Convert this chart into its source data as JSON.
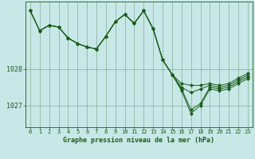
{
  "xlabel": "Graphe pression niveau de la mer (hPa)",
  "bg_color": "#c8e8e8",
  "plot_bg_color": "#c8e8e8",
  "grid_color": "#88aa99",
  "line_color": "#1a5c1a",
  "marker_color": "#1a5c1a",
  "ylim": [
    1026.4,
    1029.85
  ],
  "yticks": [
    1027,
    1028
  ],
  "xlim": [
    -0.5,
    23.5
  ],
  "xticks": [
    0,
    1,
    2,
    3,
    4,
    5,
    6,
    7,
    8,
    9,
    10,
    11,
    12,
    13,
    14,
    15,
    16,
    17,
    18,
    19,
    20,
    21,
    22,
    23
  ],
  "series": [
    [
      1029.6,
      1029.05,
      1029.2,
      1029.15,
      1028.85,
      1028.7,
      1028.6,
      1028.55,
      1028.9,
      1029.3,
      1029.5,
      1029.25,
      1029.6,
      1029.1,
      1028.25,
      1027.85,
      1027.6,
      1027.55,
      1027.55,
      1027.6,
      1027.55,
      1027.6,
      1027.75,
      1027.88
    ],
    [
      1029.6,
      1029.05,
      1029.2,
      1029.15,
      1028.85,
      1028.7,
      1028.6,
      1028.55,
      1028.9,
      1029.3,
      1029.5,
      1029.25,
      1029.6,
      1029.1,
      1028.25,
      1027.85,
      1027.5,
      1027.35,
      1027.45,
      1027.55,
      1027.5,
      1027.55,
      1027.7,
      1027.83
    ],
    [
      1029.6,
      1029.05,
      1029.2,
      1029.15,
      1028.85,
      1028.7,
      1028.6,
      1028.55,
      1028.9,
      1029.3,
      1029.5,
      1029.25,
      1029.6,
      1029.1,
      1028.25,
      1027.85,
      1027.45,
      1026.88,
      1027.05,
      1027.5,
      1027.45,
      1027.5,
      1027.65,
      1027.78
    ],
    [
      1029.6,
      1029.05,
      1029.2,
      1029.15,
      1028.85,
      1028.7,
      1028.6,
      1028.55,
      1028.9,
      1029.3,
      1029.5,
      1029.25,
      1029.6,
      1029.1,
      1028.25,
      1027.85,
      1027.4,
      1026.78,
      1027.0,
      1027.45,
      1027.4,
      1027.45,
      1027.6,
      1027.73
    ]
  ]
}
